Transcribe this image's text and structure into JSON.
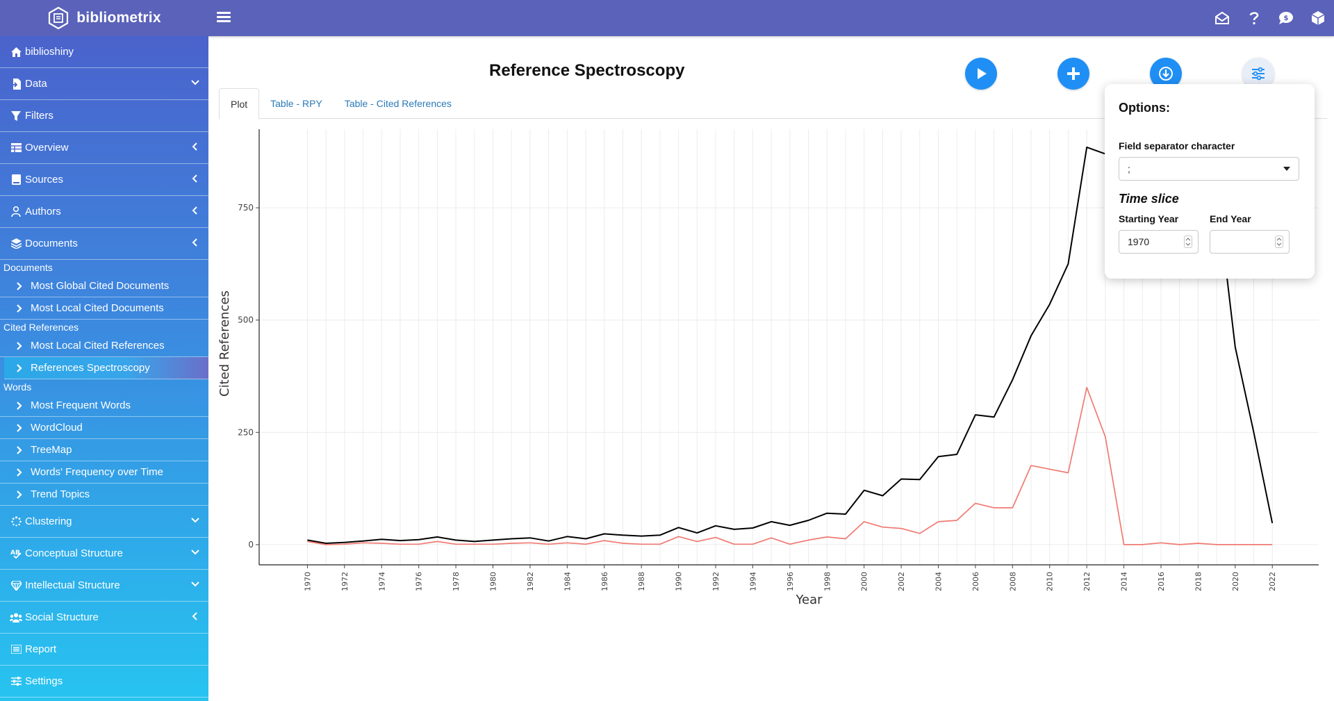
{
  "header": {
    "brand": "bibliometrix",
    "icons": [
      "envelope-open-icon",
      "question-icon",
      "comment-dollar-icon",
      "cube-icon"
    ]
  },
  "sidebar": {
    "items": [
      {
        "label": "biblioshiny",
        "icon": "home-icon"
      },
      {
        "label": "Data",
        "icon": "file-import-icon",
        "caret": "down"
      },
      {
        "label": "Filters",
        "icon": "filter-icon"
      },
      {
        "label": "Overview",
        "icon": "table-icon",
        "caret": "left"
      },
      {
        "label": "Sources",
        "icon": "book-icon",
        "caret": "left"
      },
      {
        "label": "Authors",
        "icon": "user-icon",
        "caret": "left"
      },
      {
        "label": "Documents",
        "icon": "layers-icon",
        "caret": "left"
      }
    ],
    "documents_section": "Documents",
    "documents_subitems": [
      "Most Global Cited Documents",
      "Most Local Cited Documents"
    ],
    "cited_section": "Cited References",
    "cited_subitems": [
      "Most Local Cited References",
      "References Spectroscopy"
    ],
    "words_section": "Words",
    "words_subitems": [
      "Most Frequent Words",
      "WordCloud",
      "TreeMap",
      "Words' Frequency over Time",
      "Trend Topics"
    ],
    "bottom_items": [
      {
        "label": "Clustering",
        "icon": "spinner-icon",
        "caret": "down"
      },
      {
        "label": "Conceptual Structure",
        "icon": "spell-check-icon",
        "caret": "down"
      },
      {
        "label": "Intellectual Structure",
        "icon": "gem-icon",
        "caret": "down"
      },
      {
        "label": "Social Structure",
        "icon": "users-icon",
        "caret": "left"
      },
      {
        "label": "Report",
        "icon": "list-icon"
      },
      {
        "label": "Settings",
        "icon": "sliders-icon"
      }
    ]
  },
  "main": {
    "title": "Reference Spectroscopy",
    "tabs": [
      "Plot",
      "Table - RPY",
      "Table - Cited References"
    ],
    "active_tab": 0,
    "buttons": [
      "play-icon",
      "plus-icon",
      "download-icon",
      "sliders-icon"
    ]
  },
  "options": {
    "title": "Options:",
    "separator_label": "Field separator character",
    "separator_value": ";",
    "time_slice_title": "Time slice",
    "start_label": "Starting Year",
    "start_value": "1970",
    "end_label": "End Year",
    "end_value": ""
  },
  "chart_data": {
    "type": "line",
    "title": "",
    "xlabel": "Year",
    "ylabel": "Cited References",
    "x": [
      1970,
      1971,
      1972,
      1973,
      1974,
      1975,
      1976,
      1977,
      1978,
      1979,
      1980,
      1981,
      1982,
      1983,
      1984,
      1985,
      1986,
      1987,
      1988,
      1989,
      1990,
      1991,
      1992,
      1993,
      1994,
      1995,
      1996,
      1997,
      1998,
      1999,
      2000,
      2001,
      2002,
      2003,
      2004,
      2005,
      2006,
      2007,
      2008,
      2009,
      2010,
      2011,
      2012,
      2013,
      2014,
      2015,
      2016,
      2017,
      2018,
      2019,
      2020,
      2021,
      2022
    ],
    "xticks": [
      1970,
      1972,
      1974,
      1976,
      1978,
      1980,
      1982,
      1984,
      1986,
      1988,
      1990,
      1992,
      1994,
      1996,
      1998,
      2000,
      2002,
      2004,
      2006,
      2008,
      2010,
      2012,
      2014,
      2016,
      2018,
      2020,
      2022
    ],
    "yticks": [
      0,
      250,
      500,
      750
    ],
    "ylim": [
      -45,
      925
    ],
    "xlim": [
      1967.4,
      2024.5
    ],
    "grid": true,
    "legend": "none",
    "series": [
      {
        "color": "#000000",
        "values": [
          10,
          3,
          5,
          8,
          12,
          9,
          11,
          17,
          10,
          7,
          10,
          13,
          15,
          8,
          18,
          13,
          24,
          21,
          19,
          21,
          38,
          26,
          42,
          34,
          37,
          51,
          43,
          54,
          70,
          68,
          121,
          109,
          146,
          145,
          196,
          201,
          289,
          284,
          367,
          465,
          535,
          625,
          885,
          870,
          865,
          855,
          845,
          835,
          820,
          790,
          440,
          250,
          48
        ]
      },
      {
        "color": "#f07a72",
        "values": [
          7,
          0,
          1,
          4,
          3,
          1,
          1,
          7,
          1,
          1,
          1,
          3,
          4,
          1,
          4,
          1,
          9,
          3,
          1,
          1,
          18,
          7,
          16,
          1,
          1,
          15,
          1,
          10,
          17,
          13,
          51,
          39,
          36,
          25,
          51,
          54,
          92,
          82,
          82,
          176,
          168,
          160,
          350,
          240,
          0,
          0,
          4,
          0,
          3,
          0,
          0,
          0,
          0
        ]
      }
    ]
  }
}
